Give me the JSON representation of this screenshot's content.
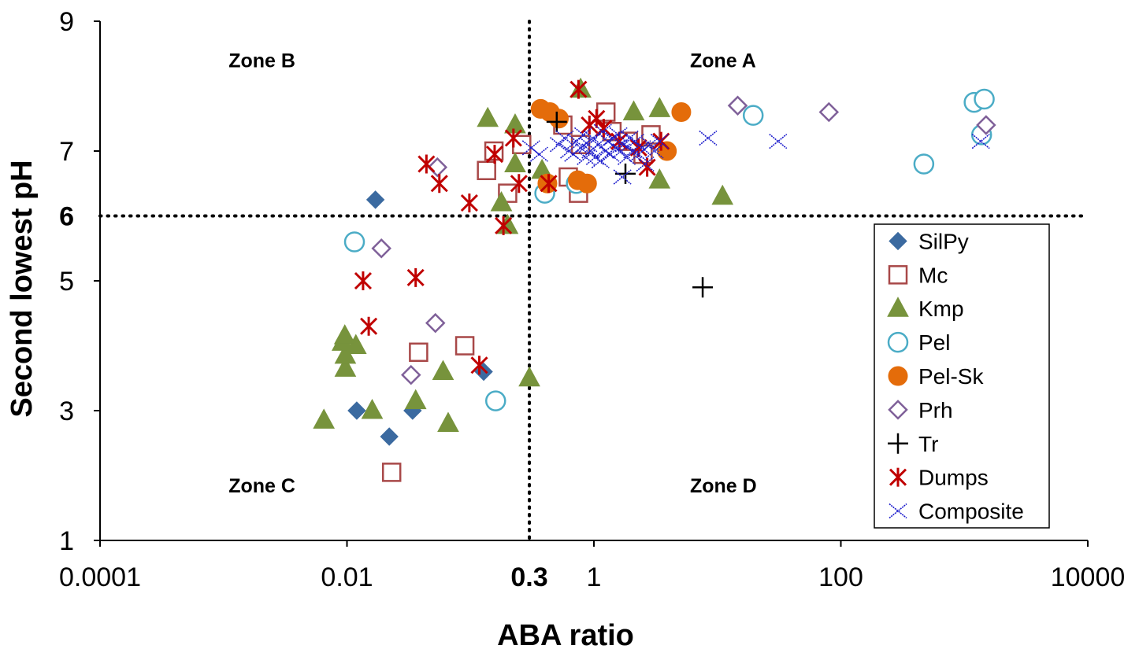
{
  "chart_data": {
    "type": "scatter",
    "title": "",
    "xlabel": "ABA ratio",
    "ylabel": "Second lowest pH",
    "x_scale": "log",
    "xlim": [
      0.0001,
      10000
    ],
    "ylim": [
      1,
      9
    ],
    "x_ticks": [
      {
        "value": 0.0001,
        "label": "0.0001",
        "bold": false
      },
      {
        "value": 0.01,
        "label": "0.01",
        "bold": false
      },
      {
        "value": 0.3,
        "label": "0.3",
        "bold": true
      },
      {
        "value": 1,
        "label": "1",
        "bold": false
      },
      {
        "value": 100,
        "label": "100",
        "bold": false
      },
      {
        "value": 10000,
        "label": "10000",
        "bold": false
      }
    ],
    "y_ticks": [
      {
        "value": 1,
        "label": "1",
        "bold": false
      },
      {
        "value": 3,
        "label": "3",
        "bold": false
      },
      {
        "value": 5,
        "label": "5",
        "bold": false
      },
      {
        "value": 6,
        "label": "6",
        "bold": true
      },
      {
        "value": 7,
        "label": "7",
        "bold": false
      },
      {
        "value": 9,
        "label": "9",
        "bold": false
      }
    ],
    "reference_lines": {
      "x": 0.3,
      "y": 6,
      "style": "dotted"
    },
    "zones": [
      {
        "label": "Zone A",
        "x": 6,
        "y": 8.4
      },
      {
        "label": "Zone B",
        "x": 0.0011,
        "y": 8.4
      },
      {
        "label": "Zone C",
        "x": 0.0011,
        "y": 1.85
      },
      {
        "label": "Zone D",
        "x": 6,
        "y": 1.85
      }
    ],
    "grid": false,
    "legend_position": "right",
    "series": [
      {
        "name": "SilPy",
        "marker": "diamond",
        "color": "#3b6aa0",
        "points": [
          [
            0.017,
            6.25
          ],
          [
            0.012,
            3.0
          ],
          [
            0.022,
            2.6
          ],
          [
            0.034,
            3.0
          ],
          [
            0.128,
            3.6
          ]
        ]
      },
      {
        "name": "Mc",
        "marker": "square-open",
        "color": "#a84848",
        "points": [
          [
            0.023,
            2.05
          ],
          [
            0.038,
            3.9
          ],
          [
            0.09,
            4.0
          ],
          [
            0.135,
            6.7
          ],
          [
            0.155,
            7.0
          ],
          [
            0.2,
            6.35
          ],
          [
            0.26,
            7.1
          ],
          [
            0.56,
            7.4
          ],
          [
            0.75,
            6.35
          ],
          [
            0.62,
            6.6
          ],
          [
            0.78,
            7.1
          ],
          [
            1.25,
            7.6
          ],
          [
            1.4,
            7.3
          ],
          [
            2.9,
            7.25
          ],
          [
            2.5,
            6.95
          ],
          [
            1.9,
            7.15
          ]
        ]
      },
      {
        "name": "Kmp",
        "marker": "triangle",
        "color": "#77933c",
        "points": [
          [
            0.0065,
            2.85
          ],
          [
            0.0097,
            3.65
          ],
          [
            0.0097,
            3.85
          ],
          [
            0.0092,
            4.05
          ],
          [
            0.0118,
            4.0
          ],
          [
            0.0096,
            4.15
          ],
          [
            0.016,
            3.0
          ],
          [
            0.036,
            3.15
          ],
          [
            0.06,
            3.6
          ],
          [
            0.066,
            2.8
          ],
          [
            0.138,
            7.5
          ],
          [
            0.2,
            5.85
          ],
          [
            0.178,
            6.2
          ],
          [
            0.23,
            7.4
          ],
          [
            0.23,
            6.8
          ],
          [
            0.3,
            3.5
          ],
          [
            0.38,
            6.7
          ],
          [
            0.78,
            7.95
          ],
          [
            2.1,
            7.6
          ],
          [
            3.4,
            7.65
          ],
          [
            3.4,
            6.55
          ],
          [
            11,
            6.3
          ]
        ]
      },
      {
        "name": "Pel",
        "marker": "circle-open",
        "color": "#4bacc6",
        "points": [
          [
            0.0115,
            5.6
          ],
          [
            0.16,
            3.15
          ],
          [
            0.4,
            6.35
          ],
          [
            0.72,
            6.5
          ],
          [
            19.5,
            7.55
          ],
          [
            470,
            6.8
          ],
          [
            1200,
            7.75
          ],
          [
            1450,
            7.8
          ],
          [
            1380,
            7.25
          ]
        ]
      },
      {
        "name": "Pel-Sk",
        "marker": "circle-filled",
        "color": "#e46c0a",
        "points": [
          [
            0.37,
            7.65
          ],
          [
            0.44,
            7.6
          ],
          [
            0.52,
            7.5
          ],
          [
            0.42,
            6.5
          ],
          [
            0.74,
            6.55
          ],
          [
            0.88,
            6.5
          ],
          [
            3.9,
            7.0
          ],
          [
            5.1,
            7.6
          ]
        ]
      },
      {
        "name": "Prh",
        "marker": "diamond-open",
        "color": "#7f6099",
        "points": [
          [
            0.019,
            5.5
          ],
          [
            0.033,
            3.55
          ],
          [
            0.052,
            4.35
          ],
          [
            0.054,
            6.75
          ],
          [
            14.6,
            7.7
          ],
          [
            80,
            7.6
          ],
          [
            1500,
            7.4
          ]
        ]
      },
      {
        "name": "Tr",
        "marker": "plus",
        "color": "#000000",
        "points": [
          [
            0.5,
            7.45
          ],
          [
            1.8,
            6.65
          ],
          [
            7.6,
            4.9
          ]
        ]
      },
      {
        "name": "Dumps",
        "marker": "asterisk",
        "color": "#c00000",
        "points": [
          [
            0.0135,
            5.0
          ],
          [
            0.015,
            4.3
          ],
          [
            0.036,
            5.05
          ],
          [
            0.044,
            6.8
          ],
          [
            0.056,
            6.5
          ],
          [
            0.098,
            6.2
          ],
          [
            0.118,
            3.7
          ],
          [
            0.157,
            6.95
          ],
          [
            0.185,
            5.85
          ],
          [
            0.223,
            7.2
          ],
          [
            0.247,
            6.5
          ],
          [
            0.43,
            6.5
          ],
          [
            0.75,
            7.95
          ],
          [
            0.92,
            7.4
          ],
          [
            1.05,
            7.5
          ],
          [
            1.2,
            7.35
          ],
          [
            2.7,
            6.75
          ],
          [
            3.5,
            7.15
          ],
          [
            2.3,
            7.05
          ],
          [
            1.6,
            7.15
          ]
        ]
      },
      {
        "name": "Composite",
        "marker": "x",
        "color": "#1c1ccc",
        "points": [
          [
            0.31,
            7.05
          ],
          [
            0.36,
            6.95
          ],
          [
            0.52,
            7.1
          ],
          [
            0.58,
            7.2
          ],
          [
            0.63,
            7.0
          ],
          [
            0.68,
            6.95
          ],
          [
            0.72,
            7.15
          ],
          [
            0.78,
            7.05
          ],
          [
            0.82,
            7.25
          ],
          [
            0.86,
            6.9
          ],
          [
            0.9,
            7.1
          ],
          [
            0.94,
            7.0
          ],
          [
            0.98,
            7.2
          ],
          [
            1.02,
            6.9
          ],
          [
            1.08,
            7.1
          ],
          [
            1.13,
            6.85
          ],
          [
            1.18,
            7.3
          ],
          [
            1.24,
            7.0
          ],
          [
            1.3,
            7.15
          ],
          [
            1.36,
            6.95
          ],
          [
            1.42,
            7.2
          ],
          [
            1.5,
            7.05
          ],
          [
            1.58,
            7.25
          ],
          [
            1.66,
            7.0
          ],
          [
            1.75,
            7.1
          ],
          [
            1.84,
            6.9
          ],
          [
            1.94,
            7.2
          ],
          [
            2.05,
            7.0
          ],
          [
            2.16,
            7.15
          ],
          [
            2.3,
            6.95
          ],
          [
            2.45,
            7.05
          ],
          [
            2.6,
            6.8
          ],
          [
            2.85,
            7.1
          ],
          [
            3.1,
            7.0
          ],
          [
            3.4,
            7.15
          ],
          [
            1.7,
            6.6
          ],
          [
            8.4,
            7.2
          ],
          [
            31,
            7.15
          ],
          [
            1360,
            7.15
          ]
        ]
      }
    ]
  }
}
